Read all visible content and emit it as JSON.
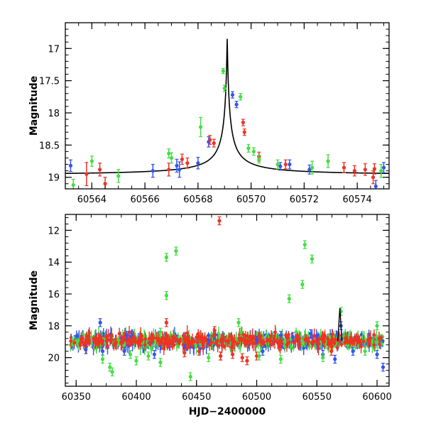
{
  "chart_data": [
    {
      "type": "scatter",
      "xlabel": "",
      "ylabel": "Magnitude",
      "xlim": [
        60563,
        60575.2
      ],
      "ylim": [
        19.18,
        16.6
      ],
      "y_inverted": true,
      "grid": false,
      "xticks": [
        60564,
        60566,
        60568,
        60570,
        60572,
        60574
      ],
      "yticks": [
        17,
        17.5,
        18,
        18.5,
        19
      ],
      "model_curve": {
        "peak_x": 60569.1,
        "peak_mag": 16.85,
        "baseline_mag": 18.97,
        "color": "#000000"
      },
      "series": [
        {
          "color": "#3355ee",
          "points": [
            [
              60563.2,
              18.82,
              0.09
            ],
            [
              60566.3,
              18.9,
              0.1
            ],
            [
              60567.2,
              18.82,
              0.1
            ],
            [
              60567.3,
              18.88,
              0.12
            ],
            [
              60568.0,
              18.78,
              0.09
            ],
            [
              60568.4,
              18.45,
              0.08
            ],
            [
              60569.3,
              17.72,
              0.05
            ],
            [
              60569.45,
              17.87,
              0.05
            ],
            [
              60571.1,
              18.83,
              0.06
            ],
            [
              60571.45,
              18.8,
              0.07
            ],
            [
              60572.2,
              18.88,
              0.07
            ],
            [
              60574.7,
              19.14,
              0.09
            ],
            [
              60575.0,
              18.85,
              0.08
            ]
          ]
        },
        {
          "color": "#ee3322",
          "points": [
            [
              60563.8,
              18.95,
              0.18
            ],
            [
              60564.3,
              18.88,
              0.1
            ],
            [
              60564.5,
              19.1,
              0.1
            ],
            [
              60566.9,
              18.88,
              0.1
            ],
            [
              60567.4,
              18.72,
              0.08
            ],
            [
              60567.6,
              18.78,
              0.08
            ],
            [
              60568.45,
              18.42,
              0.07
            ],
            [
              60568.6,
              18.47,
              0.06
            ],
            [
              60569.7,
              18.15,
              0.05
            ],
            [
              60569.75,
              18.3,
              0.05
            ],
            [
              60570.3,
              18.68,
              0.07
            ],
            [
              60571.3,
              18.8,
              0.07
            ],
            [
              60573.5,
              18.85,
              0.08
            ],
            [
              60573.9,
              18.9,
              0.08
            ],
            [
              60574.3,
              18.88,
              0.09
            ],
            [
              60574.6,
              19.0,
              0.1
            ],
            [
              60574.65,
              18.87,
              0.08
            ]
          ]
        },
        {
          "color": "#44dd44",
          "points": [
            [
              60563.3,
              19.12,
              0.09
            ],
            [
              60564.0,
              18.75,
              0.08
            ],
            [
              60565.0,
              18.98,
              0.1
            ],
            [
              60566.9,
              18.63,
              0.07
            ],
            [
              60567.0,
              18.7,
              0.08
            ],
            [
              60568.1,
              18.22,
              0.15
            ],
            [
              60568.95,
              17.35,
              0.04
            ],
            [
              60569.0,
              17.62,
              0.05
            ],
            [
              60569.6,
              17.75,
              0.05
            ],
            [
              60569.9,
              18.55,
              0.06
            ],
            [
              60570.1,
              18.6,
              0.06
            ],
            [
              60570.3,
              18.72,
              0.06
            ],
            [
              60571.0,
              18.8,
              0.07
            ],
            [
              60572.3,
              18.85,
              0.1
            ],
            [
              60572.9,
              18.75,
              0.1
            ],
            [
              60574.9,
              18.9,
              0.1
            ]
          ]
        }
      ]
    },
    {
      "type": "scatter",
      "xlabel": "HJD−2400000",
      "ylabel": "Magnitude",
      "xlim": [
        60341,
        60610
      ],
      "ylim": [
        21.8,
        11
      ],
      "y_inverted": true,
      "grid": false,
      "xticks": [
        60350,
        60400,
        60450,
        60500,
        60550,
        60600
      ],
      "yticks": [
        12,
        14,
        16,
        18,
        20
      ],
      "band": {
        "x_start": 60345,
        "x_end": 60605,
        "mag": 18.95,
        "spread": 0.35,
        "count": 320
      },
      "series": [
        {
          "color": "#3355ee",
          "points": [
            [
              60370,
              17.8
            ],
            [
              60372,
              19.6
            ],
            [
              60392,
              18.6
            ],
            [
              60415,
              19.8
            ],
            [
              60440,
              19.4
            ],
            [
              60470,
              19.9
            ],
            [
              60500,
              18.9
            ],
            [
              60505,
              19.6
            ],
            [
              60520,
              18.6
            ],
            [
              60545,
              18.5
            ],
            [
              60555,
              19.8
            ],
            [
              60565,
              20.1
            ],
            [
              60570,
              18.0
            ],
            [
              60580,
              19.6
            ],
            [
              60600,
              19.8
            ],
            [
              60605,
              20.6
            ],
            [
              60358,
              19.5
            ],
            [
              60390,
              19.6
            ],
            [
              60460,
              18.9
            ],
            [
              60530,
              18.7
            ]
          ]
        },
        {
          "color": "#ee3322",
          "points": [
            [
              60469,
              11.4
            ],
            [
              60425,
              17.8
            ],
            [
              60480,
              19.8
            ],
            [
              60488,
              20.0
            ],
            [
              60440,
              19.7
            ],
            [
              60452,
              19.6
            ],
            [
              60492,
              20.2
            ],
            [
              60500,
              19.9
            ],
            [
              60465,
              18.3
            ],
            [
              60470,
              19.9
            ],
            [
              60562,
              19.6
            ],
            [
              60520,
              19.0
            ]
          ]
        },
        {
          "color": "#44dd44",
          "points": [
            [
              60425,
              13.7
            ],
            [
              60433,
              13.3
            ],
            [
              60425,
              16.1
            ],
            [
              60485,
              17.8
            ],
            [
              60527,
              16.3
            ],
            [
              60538,
              15.4
            ],
            [
              60540,
              12.9
            ],
            [
              60546,
              13.8
            ],
            [
              60445,
              21.2
            ],
            [
              60378,
              20.6
            ],
            [
              60380,
              20.9
            ],
            [
              60400,
              20.2
            ],
            [
              60420,
              18.4
            ],
            [
              60570,
              17.1
            ],
            [
              60600,
              18.0
            ],
            [
              60487,
              18.4
            ],
            [
              60460,
              20.0
            ],
            [
              60372,
              20.1
            ],
            [
              60395,
              19.8
            ],
            [
              60410,
              19.9
            ],
            [
              60502,
              19.9
            ],
            [
              60520,
              20.1
            ],
            [
              60555,
              20.0
            ],
            [
              60590,
              19.6
            ],
            [
              60420,
              20.3
            ]
          ]
        }
      ]
    }
  ]
}
